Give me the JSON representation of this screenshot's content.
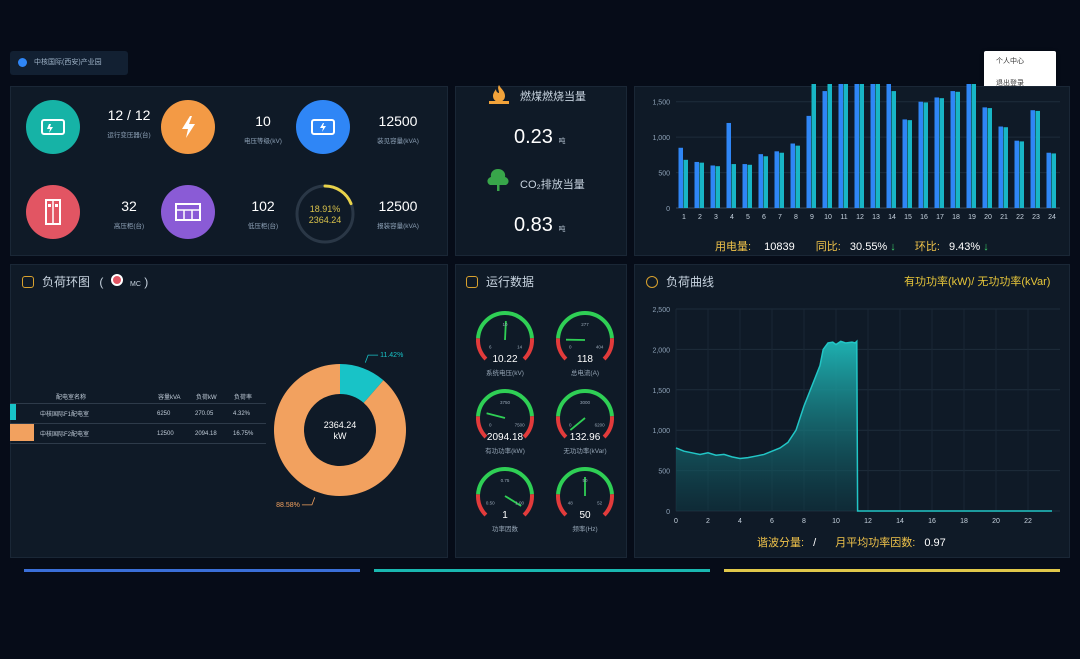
{
  "header": {
    "site_name": "中核国际(西安)产业园"
  },
  "user_menu": {
    "items": [
      "个人中心",
      "退出登录"
    ]
  },
  "stats": [
    {
      "value": "12 / 12",
      "label": "运行变压器(台)",
      "color": "#16b3a6"
    },
    {
      "value": "10",
      "label": "电压等级(kV)",
      "color": "#f39a45"
    },
    {
      "value": "12500",
      "label": "装见容量(kVA)",
      "color": "#2f86f6"
    },
    {
      "value": "32",
      "label": "高压柜(台)",
      "color": "#e25563"
    },
    {
      "value": "102",
      "label": "低压柜(台)",
      "color": "#8a5bd6"
    },
    {
      "value": "12500",
      "label": "报装容量(kVA)",
      "color": "#7e8896"
    }
  ],
  "load_ring": {
    "percent": "18.91%",
    "value": "2364.24",
    "fraction": 0.1891
  },
  "carbon": {
    "coal_label": "燃煤燃烧当量",
    "coal_value": "0.23",
    "coal_unit": "吨",
    "co2_label": "CO₂排放当量",
    "co2_value": "0.83",
    "co2_unit": "吨"
  },
  "monthly_chart": {
    "footer": {
      "usage_label": "用电量:",
      "usage_value": "10839",
      "yoy_label": "同比:",
      "yoy_value": "30.55%",
      "mom_label": "环比:",
      "mom_value": "9.43%"
    }
  },
  "chart_data": [
    {
      "type": "bar",
      "categories": [
        "1",
        "2",
        "3",
        "4",
        "5",
        "6",
        "7",
        "8",
        "9",
        "10",
        "11",
        "12",
        "13",
        "14",
        "15",
        "16",
        "17",
        "18",
        "19",
        "20",
        "21",
        "22",
        "23",
        "24"
      ],
      "series": [
        {
          "values": [
            850,
            650,
            600,
            1200,
            620,
            760,
            800,
            910,
            1300,
            1650,
            1750,
            1750,
            1750,
            1750,
            1250,
            1500,
            1560,
            1650,
            1750,
            1420,
            1150,
            950,
            1380,
            780
          ],
          "color": "#2f86f6"
        },
        {
          "values": [
            680,
            640,
            590,
            620,
            610,
            730,
            780,
            880,
            1750,
            1750,
            1750,
            1750,
            1750,
            1650,
            1240,
            1490,
            1550,
            1640,
            1750,
            1410,
            1140,
            940,
            1370,
            770
          ],
          "color": "#18b6c6"
        }
      ],
      "ylim": [
        0,
        1750
      ],
      "yticks": [
        "500",
        "1,000",
        "1,500"
      ]
    },
    {
      "type": "area",
      "title": "负荷曲线",
      "legend": "有功功率(kW)/ 无功功率(kVar)",
      "x": [
        0,
        0.5,
        1,
        1.5,
        2,
        2.5,
        3,
        3.5,
        4,
        4.5,
        5,
        5.5,
        6,
        6.5,
        7,
        7.5,
        8,
        8.5,
        9,
        9.2,
        9.5,
        9.8,
        10,
        10.3,
        10.6,
        11,
        11.2,
        11.3,
        11.35,
        12,
        14,
        16,
        18,
        20,
        22,
        23.5
      ],
      "y": [
        780,
        740,
        720,
        700,
        720,
        690,
        700,
        670,
        650,
        660,
        680,
        700,
        740,
        780,
        850,
        1000,
        1300,
        1550,
        1800,
        2000,
        2080,
        2090,
        2060,
        2100,
        2080,
        2090,
        2080,
        2100,
        0,
        0,
        0,
        0,
        0,
        0,
        0,
        0
      ],
      "xticks": [
        "0",
        "2",
        "4",
        "6",
        "8",
        "10",
        "12",
        "14",
        "16",
        "18",
        "20",
        "22"
      ],
      "yticks": [
        "0",
        "500",
        "1,000",
        "1,500",
        "2,000",
        "2,500"
      ],
      "ylim": [
        0,
        2500
      ],
      "xlim": [
        0,
        24
      ]
    },
    {
      "type": "pie",
      "title": "负荷环图",
      "center_value": "2364.24",
      "center_unit": "kW",
      "slices": [
        {
          "label": "11.42%",
          "value": 11.42,
          "color": "#18c3c7"
        },
        {
          "label": "88.58%",
          "value": 88.58,
          "color": "#f2a15f"
        }
      ]
    }
  ],
  "load_table": {
    "headers": [
      "配电室名称",
      "容量kVA",
      "负荷kW",
      "负荷率"
    ],
    "rows": [
      {
        "name": "中核国际F1配电室",
        "cap": "6250",
        "load": "270.05",
        "rate": "4.32%",
        "color": "#18c3c7"
      },
      {
        "name": "中核国际F2配电室",
        "cap": "12500",
        "load": "2094.18",
        "rate": "16.75%",
        "color": "#f2a15f"
      }
    ]
  },
  "operation": {
    "title": "运行数据",
    "gauges": [
      {
        "value": "10.22",
        "label": "系统电压(kV)",
        "level": 0.51,
        "ticks": [
          "6",
          "10",
          "14"
        ]
      },
      {
        "value": "118",
        "label": "总电流(A)",
        "level": 0.17,
        "ticks": [
          "0",
          "277",
          "404"
        ]
      },
      {
        "value": "2094.18",
        "label": "有功功率(kW)",
        "level": 0.22,
        "ticks": [
          "0",
          "3750",
          "7500"
        ]
      },
      {
        "value": "132.96",
        "label": "无功功率(kVar)",
        "level": 0.02,
        "ticks": [
          "0",
          "3000",
          "6200"
        ]
      },
      {
        "value": "1",
        "label": "功率因数",
        "level": 0.95,
        "ticks": [
          "0.50",
          "0.75",
          "1.00"
        ]
      },
      {
        "value": "50",
        "label": "频率(Hz)",
        "level": 0.5,
        "ticks": [
          "48",
          "50",
          "52"
        ]
      }
    ]
  },
  "load_ring_panel": {
    "title": "负荷环图",
    "legend_tag": "MC"
  },
  "curve_footer": {
    "harmonic_label": "谐波分量:",
    "harmonic_value": "/",
    "pf_label": "月平均功率因数:",
    "pf_value": "0.97"
  },
  "bottom_lines": [
    "#3a6fd8",
    "#19b8b0",
    "#e0c84a"
  ]
}
